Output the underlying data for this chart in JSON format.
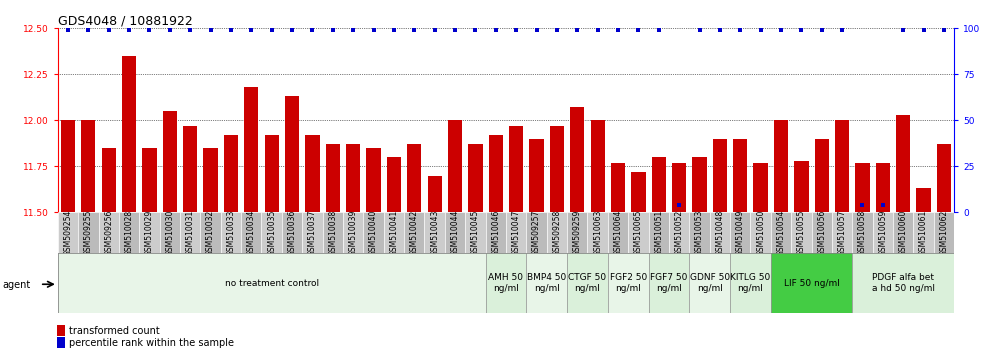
{
  "title": "GDS4048 / 10881922",
  "categories": [
    "GSM509254",
    "GSM509255",
    "GSM509256",
    "GSM510028",
    "GSM510029",
    "GSM510030",
    "GSM510031",
    "GSM510032",
    "GSM510033",
    "GSM510034",
    "GSM510035",
    "GSM510036",
    "GSM510037",
    "GSM510038",
    "GSM510039",
    "GSM510040",
    "GSM510041",
    "GSM510042",
    "GSM510043",
    "GSM510044",
    "GSM510045",
    "GSM510046",
    "GSM510047",
    "GSM509257",
    "GSM509258",
    "GSM509259",
    "GSM510063",
    "GSM510064",
    "GSM510065",
    "GSM510051",
    "GSM510052",
    "GSM510053",
    "GSM510048",
    "GSM510049",
    "GSM510050",
    "GSM510054",
    "GSM510055",
    "GSM510056",
    "GSM510057",
    "GSM510058",
    "GSM510059",
    "GSM510060",
    "GSM510061",
    "GSM510062"
  ],
  "bar_values": [
    12.0,
    12.0,
    11.85,
    12.35,
    11.85,
    12.05,
    11.97,
    11.85,
    11.92,
    12.18,
    11.92,
    12.13,
    11.92,
    11.87,
    11.87,
    11.85,
    11.8,
    11.87,
    11.7,
    12.0,
    11.87,
    11.92,
    11.97,
    11.9,
    11.97,
    12.07,
    12.0,
    11.77,
    11.72,
    11.8,
    11.77,
    11.8,
    11.9,
    11.9,
    11.77,
    12.0,
    11.78,
    11.9,
    12.0,
    11.77,
    11.77,
    12.03,
    11.63,
    11.87
  ],
  "percentile_values": [
    99,
    99,
    99,
    99,
    99,
    99,
    99,
    99,
    99,
    99,
    99,
    99,
    99,
    99,
    99,
    99,
    99,
    99,
    99,
    99,
    99,
    99,
    99,
    99,
    99,
    99,
    99,
    99,
    99,
    99,
    4,
    99,
    99,
    99,
    99,
    99,
    99,
    99,
    99,
    4,
    4,
    99,
    99,
    99
  ],
  "ylim_left": [
    11.5,
    12.5
  ],
  "ylim_right": [
    0,
    100
  ],
  "yticks_left": [
    11.5,
    11.75,
    12.0,
    12.25,
    12.5
  ],
  "yticks_right": [
    0,
    25,
    50,
    75,
    100
  ],
  "bar_color": "#cc0000",
  "dot_color": "#0000cc",
  "background_color": "#ffffff",
  "plot_bg_color": "#ffffff",
  "agent_groups": [
    {
      "label": "no treatment control",
      "start": 0,
      "end": 21,
      "color": "#e8f5e8"
    },
    {
      "label": "AMH 50\nng/ml",
      "start": 21,
      "end": 23,
      "color": "#daf0da"
    },
    {
      "label": "BMP4 50\nng/ml",
      "start": 23,
      "end": 25,
      "color": "#e8f5e8"
    },
    {
      "label": "CTGF 50\nng/ml",
      "start": 25,
      "end": 27,
      "color": "#daf0da"
    },
    {
      "label": "FGF2 50\nng/ml",
      "start": 27,
      "end": 29,
      "color": "#e8f5e8"
    },
    {
      "label": "FGF7 50\nng/ml",
      "start": 29,
      "end": 31,
      "color": "#daf0da"
    },
    {
      "label": "GDNF 50\nng/ml",
      "start": 31,
      "end": 33,
      "color": "#e8f5e8"
    },
    {
      "label": "KITLG 50\nng/ml",
      "start": 33,
      "end": 35,
      "color": "#daf0da"
    },
    {
      "label": "LIF 50 ng/ml",
      "start": 35,
      "end": 39,
      "color": "#44cc44"
    },
    {
      "label": "PDGF alfa bet\na hd 50 ng/ml",
      "start": 39,
      "end": 44,
      "color": "#daf0da"
    }
  ],
  "title_fontsize": 9,
  "tick_fontsize": 5.5,
  "label_fontsize": 7,
  "agent_label_fontsize": 6.5
}
